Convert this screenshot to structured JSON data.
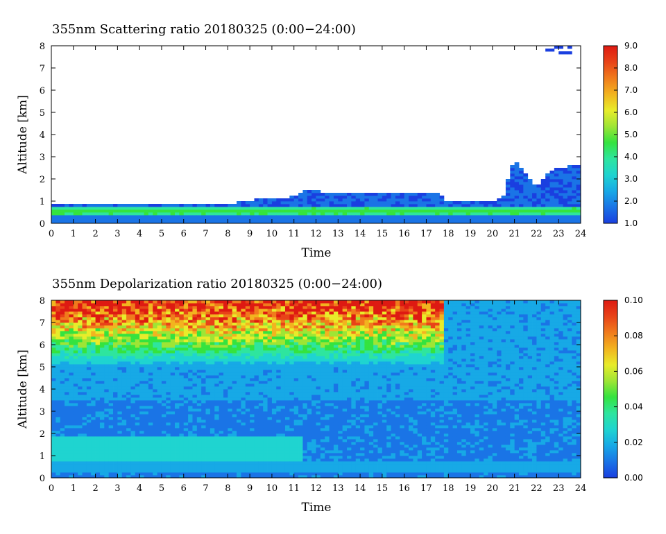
{
  "colormap": [
    "#1a3fe0",
    "#1a74e6",
    "#17a9e6",
    "#1fd4d0",
    "#2ee59e",
    "#35e33f",
    "#9ee535",
    "#e8ec2a",
    "#f2b41f",
    "#f07b1c",
    "#e84318",
    "#de1a12"
  ],
  "chart_data": [
    {
      "type": "heatmap",
      "title": "355nm Scattering ratio  20180325 (0:00−24:00)",
      "xlabel": "Time",
      "ylabel": "Altitude [km]",
      "xlim": [
        0,
        24
      ],
      "ylim": [
        0,
        8
      ],
      "x_ticks": [
        "0",
        "1",
        "2",
        "3",
        "4",
        "5",
        "6",
        "7",
        "8",
        "9",
        "10",
        "11",
        "12",
        "13",
        "14",
        "15",
        "16",
        "17",
        "18",
        "19",
        "20",
        "21",
        "22",
        "23",
        "24"
      ],
      "y_ticks": [
        "0",
        "1",
        "2",
        "3",
        "4",
        "5",
        "6",
        "7",
        "8"
      ],
      "colorbar": {
        "min": 1.0,
        "max": 9.0,
        "ticks": [
          "1.0",
          "2.0",
          "3.0",
          "4.0",
          "5.0",
          "6.0",
          "7.0",
          "8.0",
          "9.0"
        ]
      },
      "features": {
        "aerosol_layer_top_km": [
          [
            0,
            0.85
          ],
          [
            4,
            0.82
          ],
          [
            8,
            0.83
          ],
          [
            9,
            1.05
          ],
          [
            11,
            1.2
          ],
          [
            11.5,
            1.5
          ],
          [
            13,
            1.35
          ],
          [
            17.5,
            1.4
          ],
          [
            18,
            0.95
          ],
          [
            20,
            1.0
          ],
          [
            20.5,
            1.3
          ],
          [
            21,
            2.9
          ],
          [
            21.5,
            2.2
          ],
          [
            22,
            1.6
          ],
          [
            22.5,
            2.2
          ],
          [
            23,
            2.5
          ],
          [
            24,
            2.7
          ]
        ],
        "high_ratio_band_km": [
          0.35,
          0.75
        ],
        "high_ratio_band_value": 4.5,
        "upper_layer_value": 1.5,
        "top_patch_hours": [
          22.5,
          23.5
        ],
        "top_patch_km": [
          7.6,
          8.0
        ]
      }
    },
    {
      "type": "heatmap",
      "title": "355nm Depolarization ratio  20180325 (0:00−24:00)",
      "xlabel": "Time",
      "ylabel": "Altitude [km]",
      "xlim": [
        0,
        24
      ],
      "ylim": [
        0,
        8
      ],
      "x_ticks": [
        "0",
        "1",
        "2",
        "3",
        "4",
        "5",
        "6",
        "7",
        "8",
        "9",
        "10",
        "11",
        "12",
        "13",
        "14",
        "15",
        "16",
        "17",
        "18",
        "19",
        "20",
        "21",
        "22",
        "23",
        "24"
      ],
      "y_ticks": [
        "0",
        "1",
        "2",
        "3",
        "4",
        "5",
        "6",
        "7",
        "8"
      ],
      "colorbar": {
        "min": 0.0,
        "max": 0.1,
        "ticks": [
          "0.00",
          "0.02",
          "0.04",
          "0.06",
          "0.08",
          "0.10"
        ]
      },
      "features": {
        "noisy_region_hours": [
          0,
          17.8
        ],
        "noisy_region_min_km": 5.0,
        "noisy_peak_value": 0.09,
        "lower_layer_km": [
          0.8,
          1.9
        ],
        "lower_layer_value": 0.025,
        "background_value": 0.012
      }
    }
  ]
}
